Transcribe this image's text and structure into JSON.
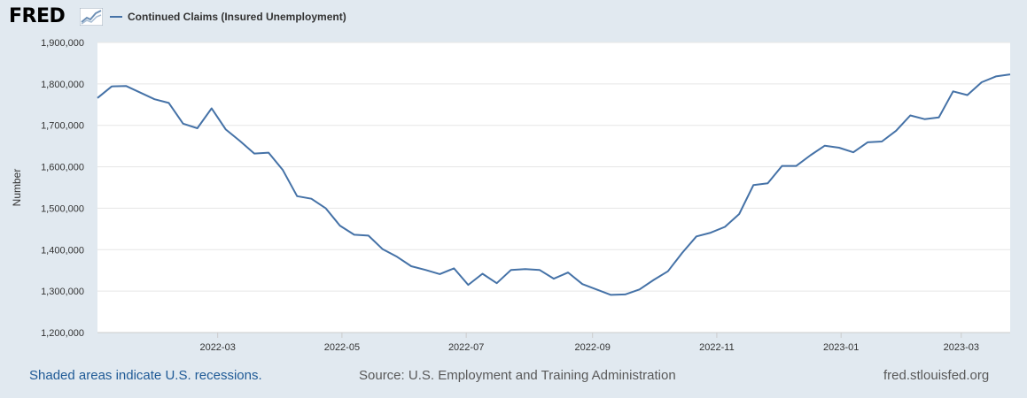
{
  "brand": {
    "logo_text": "FRED",
    "accent": "#4572a7"
  },
  "chart_data": {
    "type": "line",
    "title": "",
    "xlabel": "",
    "ylabel": "Number",
    "ylim": [
      1200000,
      1900000
    ],
    "yticks": [
      1200000,
      1300000,
      1400000,
      1500000,
      1600000,
      1700000,
      1800000,
      1900000
    ],
    "ytick_labels": [
      "1,200,000",
      "1,300,000",
      "1,400,000",
      "1,500,000",
      "1,600,000",
      "1,700,000",
      "1,800,000",
      "1,900,000"
    ],
    "xlim": [
      "2022-01-01",
      "2023-03-25"
    ],
    "xticks": [
      "2022-03-01",
      "2022-05-01",
      "2022-07-01",
      "2022-09-01",
      "2022-11-01",
      "2023-01-01",
      "2023-03-01"
    ],
    "xtick_labels": [
      "2022-03",
      "2022-05",
      "2022-07",
      "2022-09",
      "2022-11",
      "2023-01",
      "2023-03"
    ],
    "grid": true,
    "legend": "top-left",
    "series": [
      {
        "name": "Continued Claims (Insured Unemployment)",
        "color": "#4572a7",
        "x": [
          "2022-01-01",
          "2022-01-08",
          "2022-01-15",
          "2022-01-22",
          "2022-01-29",
          "2022-02-05",
          "2022-02-12",
          "2022-02-19",
          "2022-02-26",
          "2022-03-05",
          "2022-03-12",
          "2022-03-19",
          "2022-03-26",
          "2022-04-02",
          "2022-04-09",
          "2022-04-16",
          "2022-04-23",
          "2022-04-30",
          "2022-05-07",
          "2022-05-14",
          "2022-05-21",
          "2022-05-28",
          "2022-06-04",
          "2022-06-11",
          "2022-06-18",
          "2022-06-25",
          "2022-07-02",
          "2022-07-09",
          "2022-07-16",
          "2022-07-23",
          "2022-07-30",
          "2022-08-06",
          "2022-08-13",
          "2022-08-20",
          "2022-08-27",
          "2022-09-03",
          "2022-09-10",
          "2022-09-17",
          "2022-09-24",
          "2022-10-01",
          "2022-10-08",
          "2022-10-15",
          "2022-10-22",
          "2022-10-29",
          "2022-11-05",
          "2022-11-12",
          "2022-11-19",
          "2022-11-26",
          "2022-12-03",
          "2022-12-10",
          "2022-12-17",
          "2022-12-24",
          "2022-12-31",
          "2023-01-07",
          "2023-01-14",
          "2023-01-21",
          "2023-01-28",
          "2023-02-04",
          "2023-02-11",
          "2023-02-18",
          "2023-02-25",
          "2023-03-04",
          "2023-03-11",
          "2023-03-18",
          "2023-03-25"
        ],
        "values": [
          1766000,
          1794000,
          1795000,
          1779000,
          1763000,
          1754000,
          1704000,
          1693000,
          1741000,
          1690000,
          1662000,
          1632000,
          1634000,
          1592000,
          1529000,
          1523000,
          1500000,
          1458000,
          1436000,
          1434000,
          1401000,
          1383000,
          1360000,
          1351000,
          1341000,
          1355000,
          1315000,
          1342000,
          1319000,
          1351000,
          1353000,
          1351000,
          1330000,
          1345000,
          1317000,
          1304000,
          1291000,
          1292000,
          1304000,
          1327000,
          1348000,
          1392000,
          1432000,
          1441000,
          1455000,
          1486000,
          1556000,
          1560000,
          1602000,
          1602000,
          1628000,
          1651000,
          1646000,
          1635000,
          1659000,
          1661000,
          1687000,
          1724000,
          1715000,
          1719000,
          1782000,
          1773000,
          1804000,
          1818000,
          1823000
        ]
      }
    ]
  },
  "footer": {
    "recessions_note": "Shaded areas indicate U.S. recessions.",
    "source": "Source: U.S. Employment and Training Administration",
    "site": "fred.stlouisfed.org"
  }
}
